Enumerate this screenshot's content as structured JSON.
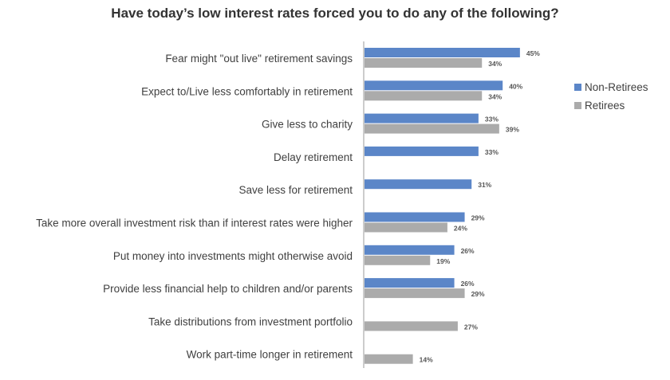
{
  "chart_data": {
    "type": "bar",
    "orientation": "horizontal",
    "title": "Have today’s low interest rates forced you to do any of the following?",
    "categories": [
      "Fear might \"out live\" retirement savings",
      "Expect to/Live less comfortably in retirement",
      "Give less to charity",
      "Delay retirement",
      "Save less for retirement",
      "Take more overall investment risk than if interest rates were higher",
      "Put money into investments might otherwise avoid",
      "Provide less financial help to children and/or parents",
      "Take distributions from investment portfolio",
      "Work part-time longer in retirement"
    ],
    "series": [
      {
        "name": "Non-Retirees",
        "color": "#5B86C8",
        "values": [
          45,
          40,
          33,
          33,
          31,
          29,
          26,
          26,
          null,
          null
        ],
        "labels": [
          "45%",
          "40%",
          "33%",
          "33%",
          "31%",
          "29%",
          "26%",
          "26%",
          "",
          ""
        ]
      },
      {
        "name": "Retirees",
        "color": "#ABABAB",
        "values": [
          34,
          34,
          39,
          null,
          null,
          24,
          19,
          29,
          27,
          14
        ],
        "labels": [
          "34%",
          "34%",
          "39%",
          "",
          "",
          "24%",
          "19%",
          "29%",
          "27%",
          "14%"
        ]
      }
    ],
    "xlim": [
      0,
      50
    ],
    "grid": false,
    "legend_position": "right"
  }
}
